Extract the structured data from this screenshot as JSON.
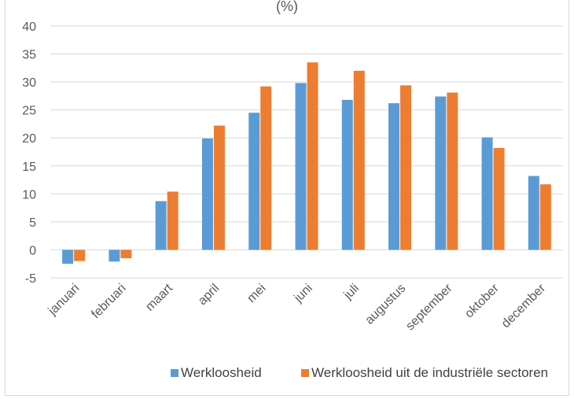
{
  "chart_data": {
    "type": "bar",
    "title": "(%)",
    "categories": [
      "januari",
      "februari",
      "maart",
      "april",
      "mei",
      "juni",
      "juli",
      "augustus",
      "september",
      "oktober",
      "december"
    ],
    "series": [
      {
        "name": "Werkloosheid",
        "color": "#5b9bd5",
        "values": [
          -2.5,
          -2.1,
          8.7,
          19.9,
          24.5,
          29.8,
          26.8,
          26.2,
          27.4,
          20.1,
          13.2
        ]
      },
      {
        "name": "Werkloosheid uit de industriële sectoren",
        "color": "#ed7d31",
        "values": [
          -2.0,
          -1.5,
          10.4,
          22.2,
          29.2,
          33.5,
          32.0,
          29.4,
          28.1,
          18.2,
          11.7
        ]
      }
    ],
    "yticks": [
      "40",
      "35",
      "30",
      "25",
      "20",
      "15",
      "10",
      "5",
      "0",
      "-5"
    ],
    "ylim": [
      -5,
      40
    ],
    "grid": true,
    "legend": "bottom",
    "gridline_color": "#d9d9d9"
  }
}
